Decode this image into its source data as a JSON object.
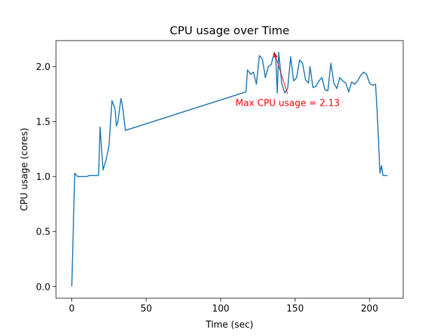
{
  "chart_data": {
    "type": "line",
    "title": "CPU usage over Time",
    "xlabel": "Time (sec)",
    "ylabel": "CPU usage (cores)",
    "x": [
      0,
      2,
      4,
      6,
      8,
      10,
      12,
      14,
      16,
      18,
      19,
      21,
      23,
      25,
      27,
      29,
      30,
      31,
      33,
      34,
      36,
      117,
      118,
      120,
      122,
      124,
      126,
      128,
      130,
      132,
      134,
      136,
      137,
      138,
      139,
      141,
      143,
      145,
      147,
      149,
      151,
      153,
      155,
      157,
      159,
      160,
      162,
      164,
      166,
      168,
      170,
      172,
      174,
      176,
      178,
      180,
      182,
      184,
      186,
      188,
      190,
      192,
      194,
      196,
      198,
      200,
      202,
      204,
      205,
      207,
      208,
      209,
      212
    ],
    "series": [
      {
        "name": "CPU usage",
        "color": "#1f77b4",
        "values": [
          0,
          1.03,
          1.0,
          1.0,
          1.0,
          1.0,
          1.01,
          1.01,
          1.01,
          1.01,
          1.45,
          1.06,
          1.15,
          1.28,
          1.69,
          1.62,
          1.46,
          1.5,
          1.71,
          1.65,
          1.42,
          1.77,
          1.97,
          1.93,
          1.95,
          1.84,
          2.1,
          2.07,
          1.9,
          2.0,
          2.02,
          2.13,
          2.08,
          1.76,
          2.13,
          1.85,
          1.76,
          1.8,
          2.09,
          1.87,
          1.9,
          2.06,
          2.03,
          1.88,
          1.85,
          2.0,
          1.81,
          1.82,
          1.87,
          1.9,
          1.79,
          1.78,
          2.03,
          1.85,
          1.8,
          1.9,
          1.87,
          1.85,
          1.77,
          1.86,
          1.84,
          1.87,
          1.92,
          1.95,
          1.93,
          1.85,
          1.83,
          1.84,
          1.62,
          1.03,
          1.1,
          1.01,
          1.01
        ]
      }
    ],
    "xlim": [
      -10.6,
      222.6
    ],
    "ylim": [
      -0.1065,
      2.2365
    ],
    "xticks": [
      0,
      50,
      100,
      150,
      200
    ],
    "yticks": [
      {
        "value": 0,
        "label": "0.0"
      },
      {
        "value": 0.5,
        "label": "0.5"
      },
      {
        "value": 1,
        "label": "1.0"
      },
      {
        "value": 1.5,
        "label": "1.5"
      },
      {
        "value": 2,
        "label": "2.0"
      }
    ],
    "annotation": {
      "text": "Max CPU usage = 2.13",
      "xy": [
        136,
        2.13
      ],
      "xytext": [
        145,
        1.75
      ],
      "color": "red"
    }
  }
}
